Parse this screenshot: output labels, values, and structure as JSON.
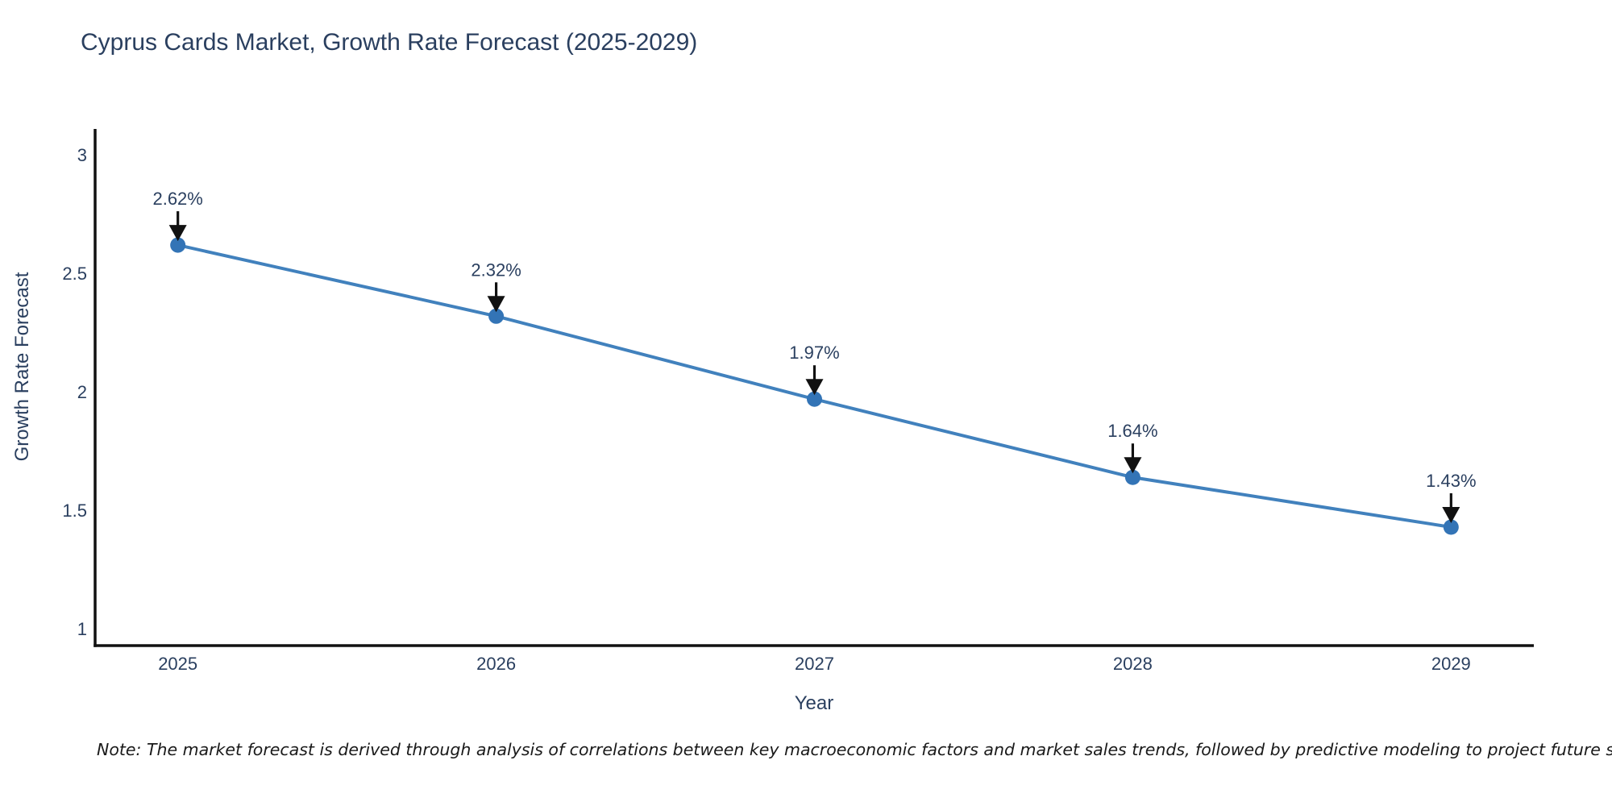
{
  "chart_data": {
    "type": "line",
    "title": "Cyprus Cards Market, Growth Rate Forecast (2025-2029)",
    "xlabel": "Year",
    "ylabel": "Growth Rate Forecast",
    "x": [
      2025,
      2026,
      2027,
      2028,
      2029
    ],
    "x_tick_labels": [
      "2025",
      "2026",
      "2027",
      "2028",
      "2029"
    ],
    "series": [
      {
        "name": "Growth Rate Forecast",
        "values": [
          2.62,
          2.32,
          1.97,
          1.64,
          1.43
        ]
      }
    ],
    "point_labels": [
      "2.62%",
      "2.32%",
      "1.97%",
      "1.64%",
      "1.43%"
    ],
    "yticks": [
      1,
      1.5,
      2,
      2.5,
      3
    ],
    "ytick_labels": [
      "1",
      "1.5",
      "2",
      "2.5",
      "3"
    ],
    "ylim": [
      0.93,
      3.11
    ],
    "xlim": [
      2024.74,
      2029.26
    ],
    "grid": false,
    "legend_position": "none",
    "marker_style": "circle",
    "annotation_style": "down-arrow",
    "colors": {
      "line": "#4181bd",
      "marker": "#3374b6",
      "arrow": "#111111",
      "axis": "#111111",
      "text": "#2a3f5f",
      "title": "#2a3f5f",
      "note": "#1a1a1a",
      "background": "#ffffff"
    }
  },
  "note": {
    "text": "Note: The market forecast is derived through analysis of correlations between key macroeconomic factors and market sales trends, followed by predictive modeling to project future sales"
  }
}
